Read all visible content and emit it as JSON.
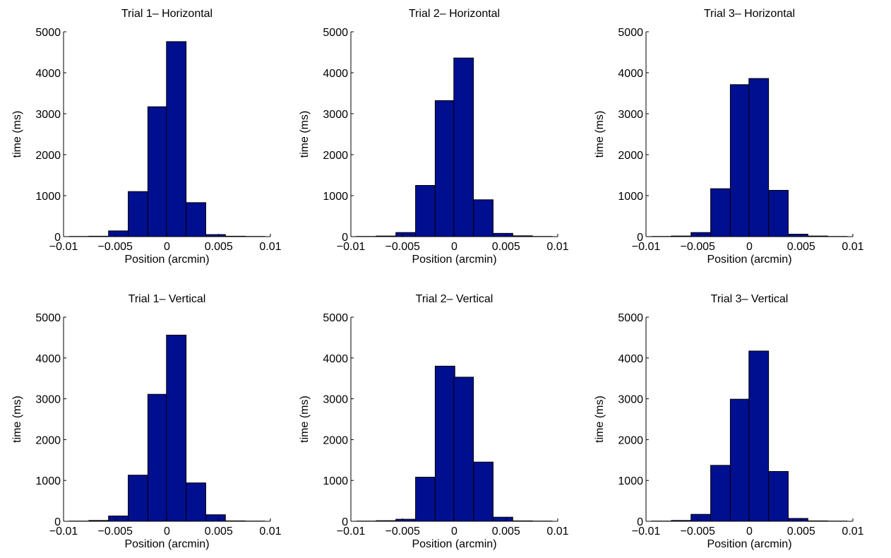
{
  "colors": {
    "bar_fill": "#000f8f",
    "axis": "#000000",
    "background": "#ffffff"
  },
  "chart_data": [
    {
      "type": "bar",
      "title": "Trial 1– Horizontal",
      "xlabel": "Position (arcmin)",
      "ylabel": "time (ms)",
      "xlim": [
        -0.01,
        0.01
      ],
      "ylim": [
        0,
        5000
      ],
      "xticks": [
        "−0.01",
        "−0.005",
        "0",
        "0.005",
        "0.01"
      ],
      "yticks": [
        "0",
        "1000",
        "2000",
        "3000",
        "4000",
        "5000"
      ],
      "bin_centers": [
        -0.0085,
        -0.0066,
        -0.0047,
        -0.0028,
        -0.0009,
        0.0009,
        0.0028,
        0.0047,
        0.0066,
        0.0085
      ],
      "bin_width": 0.0019,
      "values": [
        5,
        10,
        140,
        1100,
        3170,
        4760,
        830,
        50,
        10,
        5
      ]
    },
    {
      "type": "bar",
      "title": "Trial 2– Horizontal",
      "xlabel": "Position (arcmin)",
      "ylabel": "time (ms)",
      "xlim": [
        -0.01,
        0.01
      ],
      "ylim": [
        0,
        5000
      ],
      "xticks": [
        "−0.01",
        "−0.005",
        "0",
        "0.005",
        "0.01"
      ],
      "yticks": [
        "0",
        "1000",
        "2000",
        "3000",
        "4000",
        "5000"
      ],
      "bin_centers": [
        -0.0085,
        -0.0066,
        -0.0047,
        -0.0028,
        -0.0009,
        0.0009,
        0.0028,
        0.0047,
        0.0066,
        0.0085
      ],
      "bin_width": 0.0019,
      "values": [
        5,
        15,
        100,
        1250,
        3320,
        4360,
        900,
        80,
        20,
        5
      ]
    },
    {
      "type": "bar",
      "title": "Trial 3– Horizontal",
      "xlabel": "Position (arcmin)",
      "ylabel": "time (ms)",
      "xlim": [
        -0.01,
        0.01
      ],
      "ylim": [
        0,
        5000
      ],
      "xticks": [
        "−0.01",
        "−0.005",
        "0",
        "0.005",
        "0.01"
      ],
      "yticks": [
        "0",
        "1000",
        "2000",
        "3000",
        "4000",
        "5000"
      ],
      "bin_centers": [
        -0.0085,
        -0.0066,
        -0.0047,
        -0.0028,
        -0.0009,
        0.0009,
        0.0028,
        0.0047,
        0.0066,
        0.0085
      ],
      "bin_width": 0.0019,
      "values": [
        5,
        15,
        100,
        1170,
        3710,
        3860,
        1130,
        60,
        15,
        5
      ]
    },
    {
      "type": "bar",
      "title": "Trial 1– Vertical",
      "xlabel": "Position (arcmin)",
      "ylabel": "time (ms)",
      "xlim": [
        -0.01,
        0.01
      ],
      "ylim": [
        0,
        5000
      ],
      "xticks": [
        "−0.01",
        "−0.005",
        "0",
        "0.005",
        "0.01"
      ],
      "yticks": [
        "0",
        "1000",
        "2000",
        "3000",
        "4000",
        "5000"
      ],
      "bin_centers": [
        -0.0085,
        -0.0066,
        -0.0047,
        -0.0028,
        -0.0009,
        0.0009,
        0.0028,
        0.0047,
        0.0066,
        0.0085
      ],
      "bin_width": 0.0019,
      "values": [
        5,
        20,
        130,
        1130,
        3110,
        4560,
        940,
        160,
        10,
        5
      ]
    },
    {
      "type": "bar",
      "title": "Trial 2– Vertical",
      "xlabel": "Position (arcmin)",
      "ylabel": "time (ms)",
      "xlim": [
        -0.01,
        0.01
      ],
      "ylim": [
        0,
        5000
      ],
      "xticks": [
        "−0.01",
        "−0.005",
        "0",
        "0.005",
        "0.01"
      ],
      "yticks": [
        "0",
        "1000",
        "2000",
        "3000",
        "4000",
        "5000"
      ],
      "bin_centers": [
        -0.0085,
        -0.0066,
        -0.0047,
        -0.0028,
        -0.0009,
        0.0009,
        0.0028,
        0.0047,
        0.0066,
        0.0085
      ],
      "bin_width": 0.0019,
      "values": [
        5,
        15,
        50,
        1080,
        3800,
        3530,
        1450,
        100,
        10,
        5
      ]
    },
    {
      "type": "bar",
      "title": "Trial 3– Vertical",
      "xlabel": "Position (arcmin)",
      "ylabel": "time (ms)",
      "xlim": [
        -0.01,
        0.01
      ],
      "ylim": [
        0,
        5000
      ],
      "xticks": [
        "−0.01",
        "−0.005",
        "0",
        "0.005",
        "0.01"
      ],
      "yticks": [
        "0",
        "1000",
        "2000",
        "3000",
        "4000",
        "5000"
      ],
      "bin_centers": [
        -0.0085,
        -0.0066,
        -0.0047,
        -0.0028,
        -0.0009,
        0.0009,
        0.0028,
        0.0047,
        0.0066,
        0.0085
      ],
      "bin_width": 0.0019,
      "values": [
        5,
        20,
        170,
        1370,
        2990,
        4170,
        1220,
        70,
        10,
        5
      ]
    }
  ]
}
